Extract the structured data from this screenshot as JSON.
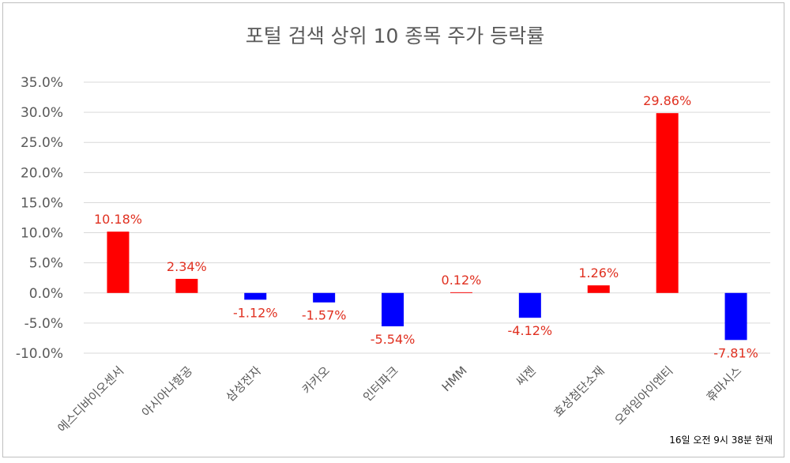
{
  "chart_data": {
    "type": "bar",
    "title": "포털 검색 상위 10 종목 주가 등락률",
    "annotation": "16일 오전 9시 38분 현재",
    "categories": [
      "에스디바이오센서",
      "아시아나항공",
      "삼성전자",
      "카카오",
      "인터파크",
      "HMM",
      "씨젠",
      "효성첨단소재",
      "오하임아이엔티",
      "휴마시스"
    ],
    "values": [
      10.18,
      2.34,
      -1.12,
      -1.57,
      -5.54,
      0.12,
      -4.12,
      1.26,
      29.86,
      -7.81
    ],
    "data_labels": [
      "10.18%",
      "2.34%",
      "-1.12%",
      "-1.57%",
      "-5.54%",
      "0.12%",
      "-4.12%",
      "1.26%",
      "29.86%",
      "-7.81%"
    ],
    "ylim": [
      -10,
      35
    ],
    "ytick_values": [
      -10,
      -5,
      0,
      5,
      10,
      15,
      20,
      25,
      30,
      35
    ],
    "ytick_labels": [
      "-10.0%",
      "-5.0%",
      "0.0%",
      "5.0%",
      "10.0%",
      "15.0%",
      "20.0%",
      "25.0%",
      "30.0%",
      "35.0%"
    ],
    "grid": true,
    "colors": {
      "positive": "#ff0000",
      "negative": "#0000ff",
      "label": "#e03020",
      "grid": "#d9d9d9",
      "axis_text": "#595959"
    }
  }
}
